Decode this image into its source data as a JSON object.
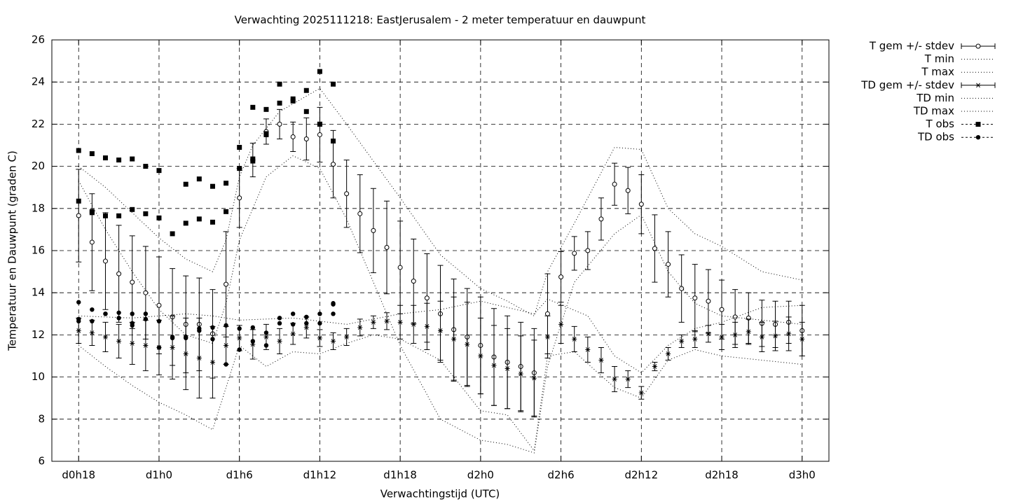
{
  "chart_data": {
    "type": "errorbar",
    "title": "Verwachting 2025111218: EastJerusalem - 2 meter temperatuur en dauwpunt",
    "xlabel": "Verwachtingstijd (UTC)",
    "ylabel": "Temperatuur en Dauwpunt (graden C)",
    "xlim": [
      16,
      74
    ],
    "ylim": [
      6,
      26
    ],
    "xticks": [
      {
        "value": 18,
        "label": "d0h18"
      },
      {
        "value": 24,
        "label": "d1h0"
      },
      {
        "value": 30,
        "label": "d1h6"
      },
      {
        "value": 36,
        "label": "d1h12"
      },
      {
        "value": 42,
        "label": "d1h18"
      },
      {
        "value": 48,
        "label": "d2h0"
      },
      {
        "value": 54,
        "label": "d2h6"
      },
      {
        "value": 60,
        "label": "d2h12"
      },
      {
        "value": 66,
        "label": "d2h18"
      },
      {
        "value": 72,
        "label": "d3h0"
      }
    ],
    "yticks": [
      6,
      8,
      10,
      12,
      14,
      16,
      18,
      20,
      22,
      24,
      26
    ],
    "grid": true,
    "legend": "outside-right",
    "series": [
      {
        "name": "T gem +/- stdev",
        "color": "#000000",
        "style": "errorbar",
        "marker": "circle",
        "x": [
          18,
          19,
          20,
          21,
          22,
          23,
          24,
          25,
          26,
          27,
          28,
          29,
          30,
          31,
          32,
          33,
          34,
          35,
          36,
          37,
          38,
          39,
          40,
          41,
          42,
          43,
          44,
          45,
          46,
          47,
          48,
          49,
          50,
          51,
          52,
          53,
          54,
          55,
          56,
          57,
          58,
          59,
          60,
          61,
          62,
          63,
          64,
          65,
          66,
          67,
          68,
          69,
          70,
          71,
          72
        ],
        "values": [
          17.66,
          16.4,
          15.5,
          14.9,
          14.5,
          14.0,
          13.4,
          12.85,
          12.5,
          12.5,
          12.05,
          14.4,
          18.5,
          20.3,
          21.65,
          22.0,
          21.4,
          21.3,
          21.5,
          20.1,
          18.7,
          17.75,
          16.95,
          16.15,
          15.2,
          14.55,
          13.75,
          13.0,
          12.25,
          11.9,
          11.5,
          10.95,
          10.7,
          10.5,
          10.2,
          13.0,
          14.75,
          15.87,
          16.0,
          17.5,
          19.15,
          18.85,
          18.2,
          16.1,
          15.35,
          14.2,
          13.75,
          13.6,
          13.2,
          12.85,
          12.8,
          12.55,
          12.5,
          12.6,
          12.2
        ],
        "errors": [
          2.2,
          2.3,
          2.3,
          2.3,
          2.2,
          2.2,
          2.3,
          2.3,
          2.3,
          2.2,
          2.1,
          2.5,
          1.4,
          0.8,
          0.6,
          0.7,
          0.7,
          1.0,
          1.3,
          1.6,
          1.6,
          1.85,
          2.0,
          2.2,
          2.2,
          2.0,
          2.1,
          2.3,
          2.4,
          2.3,
          2.3,
          2.3,
          2.2,
          2.1,
          2.1,
          1.9,
          1.2,
          0.8,
          0.9,
          1.0,
          1.0,
          1.1,
          1.4,
          1.6,
          1.55,
          1.6,
          1.6,
          1.5,
          1.4,
          1.3,
          1.2,
          1.1,
          1.1,
          1.0,
          1.2
        ]
      },
      {
        "name": "T min",
        "color": "#000000",
        "style": "dotted",
        "x": [
          18,
          20,
          22,
          24,
          26,
          28,
          29,
          30,
          32,
          34,
          36,
          38,
          40,
          42,
          45,
          48,
          50,
          52,
          53,
          55,
          58,
          60,
          62,
          64,
          66,
          69,
          72
        ],
        "values": [
          19.3,
          17.0,
          15.0,
          13.2,
          12.0,
          11.6,
          13.5,
          16.5,
          19.5,
          20.5,
          19.9,
          17.5,
          14.5,
          11.5,
          8.0,
          7.0,
          6.8,
          6.4,
          10.5,
          14.5,
          16.8,
          17.7,
          15.0,
          13.5,
          12.9,
          12.7,
          12.5
        ]
      },
      {
        "name": "T max",
        "color": "#000000",
        "style": "dotted",
        "x": [
          18,
          20,
          22,
          24,
          26,
          28,
          29,
          30,
          31,
          33,
          36,
          38,
          42,
          45,
          48,
          50,
          52,
          53,
          55,
          58,
          60,
          62,
          64,
          66,
          69,
          72
        ],
        "values": [
          20.0,
          19.0,
          17.8,
          16.6,
          15.6,
          15.0,
          16.5,
          19.5,
          21.0,
          22.6,
          23.7,
          22.0,
          18.5,
          15.8,
          14.2,
          13.6,
          12.9,
          15.0,
          17.3,
          20.9,
          20.8,
          18.0,
          16.8,
          16.2,
          15.0,
          14.6
        ]
      },
      {
        "name": "TD gem +/- stdev",
        "color": "#000000",
        "style": "errorbar",
        "marker": "star",
        "x": [
          18,
          19,
          20,
          21,
          22,
          23,
          24,
          25,
          26,
          27,
          28,
          29,
          30,
          31,
          32,
          33,
          34,
          35,
          36,
          37,
          38,
          39,
          40,
          41,
          42,
          43,
          44,
          45,
          46,
          47,
          48,
          49,
          50,
          51,
          52,
          53,
          54,
          55,
          56,
          57,
          58,
          59,
          60,
          61,
          62,
          63,
          64,
          65,
          66,
          67,
          68,
          69,
          70,
          71,
          72
        ],
        "values": [
          12.2,
          12.1,
          11.9,
          11.7,
          11.6,
          11.5,
          11.4,
          11.4,
          11.1,
          10.9,
          10.7,
          11.5,
          11.85,
          11.55,
          11.9,
          11.7,
          12.05,
          12.35,
          11.85,
          11.7,
          11.9,
          12.35,
          12.6,
          12.65,
          12.6,
          12.5,
          12.4,
          12.2,
          11.8,
          11.55,
          11.0,
          10.55,
          10.4,
          10.15,
          9.95,
          11.9,
          12.5,
          11.8,
          11.3,
          10.8,
          9.9,
          9.9,
          9.25,
          10.5,
          11.1,
          11.7,
          11.8,
          12.05,
          11.9,
          12.0,
          12.15,
          11.9,
          11.95,
          12.05,
          11.8
        ],
        "errors": [
          0.6,
          0.6,
          0.7,
          0.8,
          1.0,
          1.2,
          1.3,
          1.5,
          1.7,
          1.9,
          1.7,
          0.9,
          0.6,
          0.7,
          0.6,
          0.6,
          0.5,
          0.5,
          0.4,
          0.4,
          0.4,
          0.4,
          0.3,
          0.4,
          0.8,
          0.9,
          1.1,
          1.4,
          2.0,
          2.0,
          1.8,
          1.9,
          1.9,
          1.8,
          1.8,
          1.0,
          0.9,
          0.6,
          0.6,
          0.6,
          0.6,
          0.4,
          0.3,
          0.2,
          0.3,
          0.3,
          0.4,
          0.4,
          0.6,
          0.6,
          0.6,
          0.7,
          0.7,
          0.8,
          0.8
        ]
      },
      {
        "name": "TD min",
        "color": "#000000",
        "style": "dotted",
        "x": [
          18,
          20,
          22,
          24,
          26,
          28,
          29,
          30,
          32,
          34,
          36,
          38,
          40,
          42,
          45,
          48,
          50,
          52,
          53,
          55,
          58,
          60,
          62,
          64,
          66,
          69,
          72
        ],
        "values": [
          11.5,
          10.5,
          9.6,
          8.8,
          8.2,
          7.5,
          9.5,
          11.5,
          10.5,
          11.2,
          11.1,
          11.6,
          12.0,
          11.8,
          10.8,
          8.4,
          8.2,
          6.5,
          11.0,
          11.2,
          9.5,
          9.0,
          10.8,
          11.3,
          11.0,
          10.8,
          10.6
        ]
      },
      {
        "name": "TD max",
        "color": "#000000",
        "style": "dotted",
        "x": [
          18,
          22,
          26,
          28,
          30,
          34,
          38,
          42,
          45,
          48,
          52,
          53,
          56,
          58,
          60,
          62,
          64,
          66,
          69,
          72
        ],
        "values": [
          12.9,
          12.8,
          13.0,
          12.9,
          12.7,
          12.8,
          12.5,
          13.0,
          13.2,
          13.6,
          13.0,
          13.7,
          12.9,
          11.0,
          10.2,
          11.5,
          12.3,
          12.6,
          13.3,
          13.4
        ]
      },
      {
        "name": "T obs",
        "color": "#000000",
        "style": "points",
        "marker": "square",
        "x": [
          18,
          18,
          19,
          19,
          19,
          20,
          20,
          21,
          21,
          22,
          22,
          23,
          23,
          24,
          24,
          25,
          26,
          26,
          27,
          27,
          28,
          28,
          29,
          29,
          30,
          30,
          31,
          31,
          31,
          32,
          32,
          32,
          33,
          33,
          34,
          34,
          35,
          35,
          36,
          36,
          36,
          37,
          37
        ],
        "values": [
          20.75,
          18.35,
          20.6,
          17.85,
          17.8,
          20.4,
          17.65,
          20.3,
          17.65,
          20.35,
          17.95,
          20.0,
          17.75,
          19.8,
          17.55,
          16.8,
          19.15,
          17.3,
          19.4,
          17.5,
          19.05,
          17.35,
          19.2,
          17.85,
          20.9,
          19.9,
          22.8,
          20.35,
          20.25,
          22.7,
          21.5,
          21.55,
          23.9,
          23.0,
          23.1,
          23.2,
          23.6,
          22.6,
          24.5,
          22.0,
          22.0,
          23.9,
          21.2
        ]
      },
      {
        "name": "TD obs",
        "color": "#000000",
        "style": "points",
        "marker": "dot",
        "x": [
          18,
          18,
          18,
          19,
          19,
          20,
          20,
          21,
          21,
          22,
          22,
          22,
          23,
          23,
          24,
          24,
          25,
          25,
          26,
          26,
          27,
          27,
          28,
          28,
          29,
          29,
          30,
          30,
          31,
          31,
          32,
          32,
          33,
          33,
          34,
          34,
          35,
          35,
          36,
          36,
          37,
          37,
          37
        ],
        "values": [
          13.55,
          12.75,
          12.65,
          13.2,
          12.65,
          13.0,
          13.0,
          13.05,
          12.8,
          13.0,
          12.55,
          12.45,
          13.0,
          12.75,
          12.65,
          11.4,
          11.85,
          11.9,
          11.9,
          11.85,
          12.2,
          12.3,
          12.35,
          11.8,
          12.45,
          10.6,
          12.3,
          11.3,
          12.35,
          11.7,
          12.1,
          11.5,
          12.8,
          12.55,
          13.0,
          12.5,
          12.85,
          12.55,
          13.0,
          12.55,
          13.5,
          13.45,
          13.0
        ]
      }
    ]
  }
}
